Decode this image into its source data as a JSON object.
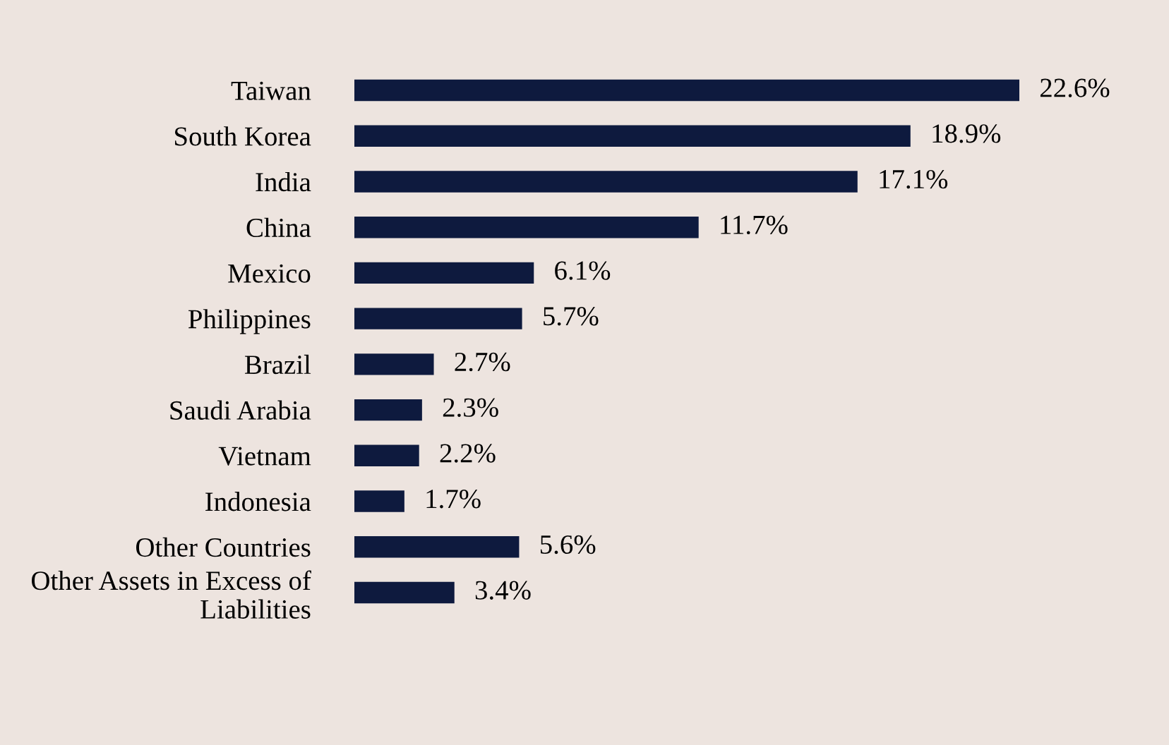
{
  "chart_data": {
    "type": "bar",
    "orientation": "horizontal",
    "color": "#0e1a3e",
    "categories": [
      "Taiwan",
      "South Korea",
      "India",
      "China",
      "Mexico",
      "Philippines",
      "Brazil",
      "Saudi Arabia",
      "Vietnam",
      "Indonesia",
      "Other Countries",
      "Other Assets in Excess of\nLiabilities"
    ],
    "values": [
      22.6,
      18.9,
      17.1,
      11.7,
      6.1,
      5.7,
      2.7,
      2.3,
      2.2,
      1.7,
      5.6,
      3.4
    ],
    "value_labels": [
      "22.6%",
      "18.9%",
      "17.1%",
      "11.7%",
      "6.1%",
      "5.7%",
      "2.7%",
      "2.3%",
      "2.2%",
      "1.7%",
      "5.6%",
      "3.4%"
    ],
    "grid": false,
    "legend": false
  }
}
